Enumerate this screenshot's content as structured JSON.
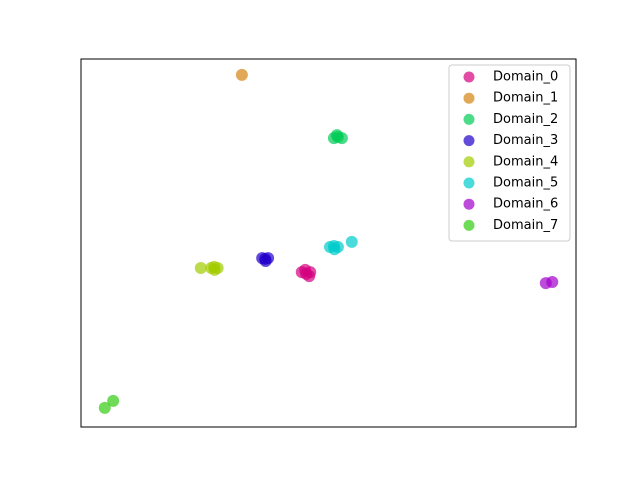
{
  "chart_data": {
    "type": "scatter",
    "xlim": [
      0,
      100
    ],
    "ylim": [
      0,
      100
    ],
    "legend": "upper right",
    "series": [
      {
        "name": "Domain_0",
        "color": "#d4007f",
        "x": [
          44.6,
          45.5,
          46.3,
          45.3,
          46.1
        ],
        "values": [
          42.1,
          41.6,
          42.1,
          42.7,
          41.0
        ]
      },
      {
        "name": "Domain_1",
        "color": "#d48310",
        "x": [
          32.5
        ],
        "values": [
          95.7
        ]
      },
      {
        "name": "Domain_2",
        "color": "#00cc55",
        "x": [
          51.1,
          51.9,
          52.7,
          51.7
        ],
        "values": [
          78.5,
          78.8,
          78.5,
          79.3
        ]
      },
      {
        "name": "Domain_3",
        "color": "#2200cc",
        "x": [
          36.6,
          37.2,
          37.8,
          37.3
        ],
        "values": [
          45.9,
          45.7,
          45.9,
          45.1
        ]
      },
      {
        "name": "Domain_4",
        "color": "#a3cc00",
        "x": [
          24.2,
          26.3,
          26.9,
          27.6,
          27.0
        ],
        "values": [
          43.2,
          43.2,
          43.5,
          43.2,
          42.7
        ]
      },
      {
        "name": "Domain_5",
        "color": "#00cccc",
        "x": [
          50.3,
          51.1,
          51.9,
          51.2,
          54.7
        ],
        "values": [
          48.9,
          49.2,
          48.9,
          48.3,
          50.3
        ]
      },
      {
        "name": "Domain_6",
        "color": "#a300cc",
        "x": [
          93.9,
          95.2
        ],
        "values": [
          39.1,
          39.4
        ]
      },
      {
        "name": "Domain_7",
        "color": "#33cc11",
        "x": [
          4.8,
          6.5
        ],
        "values": [
          5.2,
          7.1
        ]
      }
    ]
  }
}
